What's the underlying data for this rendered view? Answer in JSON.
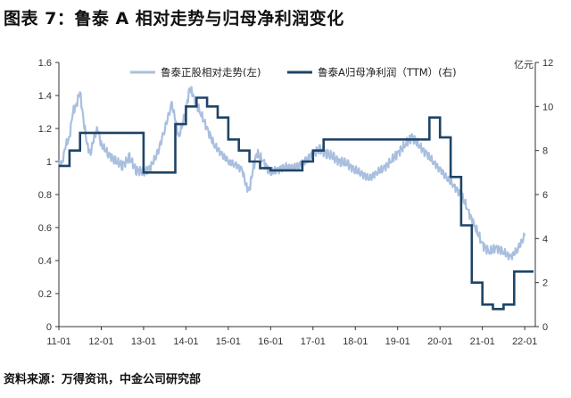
{
  "title": "图表 7：鲁泰 A 相对走势与归母净利润变化",
  "source": "资料来源：万得资讯，中金公司研究部",
  "colors": {
    "relative": "#a9bfdf",
    "profit": "#1f4466",
    "axis": "#333333"
  },
  "chart_data": {
    "type": "line",
    "title": "图表 7：鲁泰 A 相对走势与归母净利润变化",
    "x_ticks": [
      "11-01",
      "12-01",
      "13-01",
      "14-01",
      "15-01",
      "16-01",
      "17-01",
      "18-01",
      "19-01",
      "20-01",
      "21-01",
      "22-01"
    ],
    "y_left": {
      "min": 0,
      "max": 1.6,
      "step": 0.2,
      "ticks": [
        "0",
        "0.2",
        "0.4",
        "0.6",
        "0.8",
        "1",
        "1.2",
        "1.4",
        "1.6"
      ]
    },
    "y_right": {
      "min": 0,
      "max": 12,
      "step": 2,
      "unit": "亿元",
      "ticks": [
        "0",
        "2",
        "4",
        "6",
        "8",
        "10",
        "12"
      ]
    },
    "legend_position": "top",
    "series": [
      {
        "name": "鲁泰正股相对走势(左)",
        "axis": "left",
        "style": "line",
        "x": [
          "2011-01",
          "2011-02",
          "2011-03",
          "2011-04",
          "2011-05",
          "2011-06",
          "2011-07",
          "2011-08",
          "2011-09",
          "2011-10",
          "2011-11",
          "2011-12",
          "2012-01",
          "2012-03",
          "2012-05",
          "2012-07",
          "2012-09",
          "2012-11",
          "2013-01",
          "2013-03",
          "2013-05",
          "2013-07",
          "2013-09",
          "2013-10",
          "2013-11",
          "2014-01",
          "2014-02",
          "2014-03",
          "2014-05",
          "2014-07",
          "2014-09",
          "2014-11",
          "2015-01",
          "2015-03",
          "2015-05",
          "2015-06",
          "2015-07",
          "2015-08",
          "2015-09",
          "2015-11",
          "2016-01",
          "2016-03",
          "2016-05",
          "2016-07",
          "2016-09",
          "2016-11",
          "2017-01",
          "2017-03",
          "2017-05",
          "2017-07",
          "2017-09",
          "2017-11",
          "2018-01",
          "2018-03",
          "2018-05",
          "2018-07",
          "2018-09",
          "2018-11",
          "2019-01",
          "2019-03",
          "2019-05",
          "2019-07",
          "2019-09",
          "2019-11",
          "2020-01",
          "2020-03",
          "2020-05",
          "2020-07",
          "2020-09",
          "2020-11",
          "2021-01",
          "2021-03",
          "2021-05",
          "2021-07",
          "2021-09",
          "2021-11",
          "2022-01"
        ],
        "values": [
          0.98,
          1.0,
          1.1,
          1.15,
          1.3,
          1.35,
          1.42,
          1.25,
          1.1,
          1.05,
          1.15,
          1.2,
          1.1,
          1.05,
          1.0,
          0.98,
          1.02,
          0.95,
          0.93,
          0.97,
          1.05,
          1.2,
          1.35,
          1.25,
          1.15,
          1.3,
          1.45,
          1.4,
          1.3,
          1.2,
          1.1,
          1.05,
          1.0,
          0.98,
          0.95,
          0.85,
          0.83,
          0.95,
          1.05,
          1.0,
          0.93,
          0.95,
          0.97,
          0.96,
          0.98,
          1.0,
          1.05,
          1.07,
          1.05,
          1.02,
          1.0,
          0.98,
          0.95,
          0.92,
          0.9,
          0.93,
          0.96,
          1.0,
          1.05,
          1.1,
          1.15,
          1.1,
          1.05,
          1.0,
          0.95,
          0.9,
          0.85,
          0.8,
          0.7,
          0.6,
          0.5,
          0.45,
          0.48,
          0.45,
          0.42,
          0.47,
          0.55
        ]
      },
      {
        "name": "鲁泰A归母净利润（TTM）(右)",
        "axis": "right",
        "style": "step",
        "x": [
          "2011-01",
          "2011-04",
          "2011-07",
          "2011-10",
          "2012-01",
          "2012-04",
          "2012-07",
          "2012-10",
          "2013-01",
          "2013-04",
          "2013-07",
          "2013-10",
          "2014-01",
          "2014-04",
          "2014-07",
          "2014-10",
          "2015-01",
          "2015-04",
          "2015-07",
          "2015-10",
          "2016-01",
          "2016-04",
          "2016-07",
          "2016-10",
          "2017-01",
          "2017-04",
          "2017-07",
          "2017-10",
          "2018-01",
          "2018-04",
          "2018-07",
          "2018-10",
          "2019-01",
          "2019-04",
          "2019-07",
          "2019-10",
          "2020-01",
          "2020-04",
          "2020-07",
          "2020-10",
          "2021-01",
          "2021-04",
          "2021-07",
          "2021-10",
          "2022-01"
        ],
        "values": [
          7.3,
          8.0,
          8.8,
          8.8,
          8.8,
          8.8,
          8.8,
          8.8,
          7.0,
          7.0,
          7.0,
          9.2,
          10.0,
          10.4,
          10.0,
          9.5,
          8.5,
          8.0,
          7.5,
          7.2,
          7.1,
          7.1,
          7.1,
          7.5,
          8.0,
          8.5,
          8.5,
          8.5,
          8.5,
          8.5,
          8.5,
          8.5,
          8.5,
          8.5,
          8.5,
          9.5,
          8.6,
          6.8,
          4.6,
          2.0,
          1.0,
          0.8,
          1.0,
          2.5,
          2.5
        ]
      }
    ]
  }
}
